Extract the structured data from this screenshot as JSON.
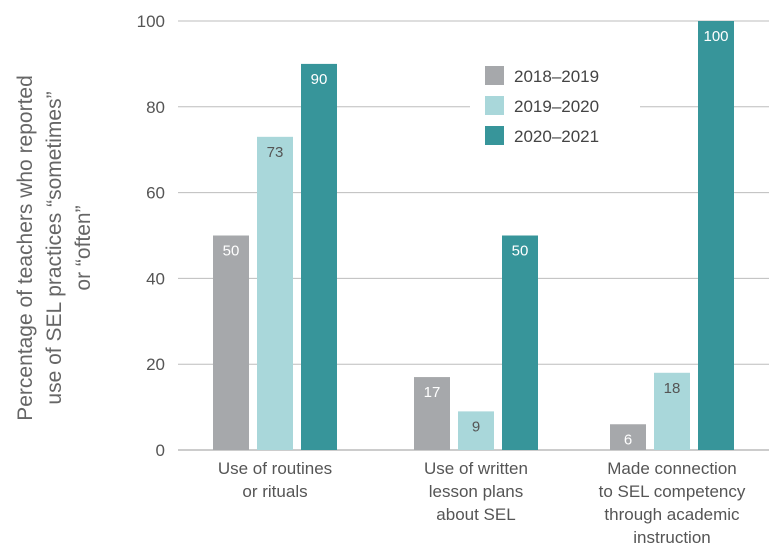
{
  "chart_data": {
    "type": "bar",
    "ylabel": [
      "Percentage of teachers who reported",
      "use of SEL practices “sometimes”",
      "or “often”"
    ],
    "ylim": [
      0,
      100
    ],
    "yticks": [
      0,
      20,
      40,
      60,
      80,
      100
    ],
    "grid": "horizontal",
    "legend_position": "top-right",
    "categories": [
      [
        "Use of routines",
        "or rituals"
      ],
      [
        "Use of written",
        "lesson plans",
        "about SEL"
      ],
      [
        "Made connection",
        "to SEL competency",
        "through academic",
        "instruction"
      ]
    ],
    "series": [
      {
        "name": "2018–2019",
        "color": "#a6a8ab",
        "values": [
          50,
          17,
          6
        ]
      },
      {
        "name": "2019–2020",
        "color": "#a9d7da",
        "values": [
          73,
          9,
          18
        ]
      },
      {
        "name": "2020–2021",
        "color": "#37959a",
        "values": [
          90,
          50,
          100
        ]
      }
    ],
    "data_label_colors": [
      "#ffffff",
      "#555555",
      "#ffffff"
    ]
  }
}
